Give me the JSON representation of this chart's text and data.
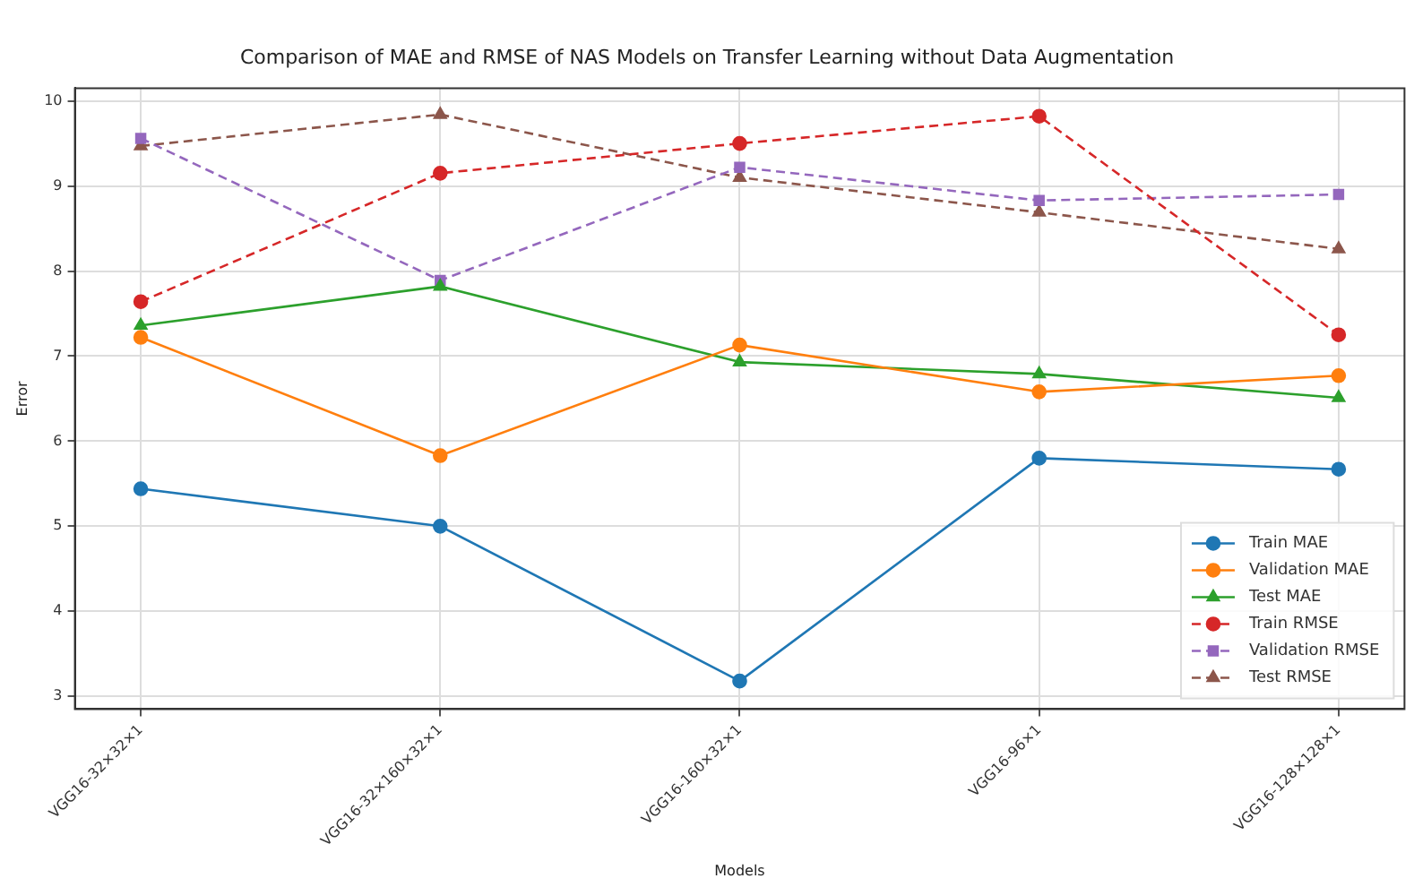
{
  "chart_data": {
    "type": "line",
    "title": "Comparison of MAE and RMSE of NAS Models on Transfer Learning without Data Augmentation",
    "xlabel": "Models",
    "ylabel": "Error",
    "categories": [
      "VGG16-32×32×1",
      "VGG16-32×160×32×1",
      "VGG16-160×32×1",
      "VGG16-96×1",
      "VGG16-128×128×1"
    ],
    "ylim": [
      2.85,
      10.15
    ],
    "yticks": [
      3,
      4,
      5,
      6,
      7,
      8,
      9,
      10
    ],
    "grid": true,
    "legend": "bottom right",
    "series": [
      {
        "name": "Train MAE",
        "color": "#1f77b4",
        "marker": "circle",
        "line_style": "solid",
        "values": [
          5.44,
          5.0,
          3.18,
          5.8,
          5.67
        ]
      },
      {
        "name": "Validation MAE",
        "color": "#ff7f0e",
        "marker": "circle",
        "line_style": "solid",
        "values": [
          7.22,
          5.83,
          7.13,
          6.58,
          6.77
        ]
      },
      {
        "name": "Test MAE",
        "color": "#2ca02c",
        "marker": "triangle",
        "line_style": "solid",
        "values": [
          7.36,
          7.82,
          6.93,
          6.79,
          6.51
        ]
      },
      {
        "name": "Train RMSE",
        "color": "#d62728",
        "marker": "circle",
        "line_style": "dashed",
        "values": [
          7.64,
          9.15,
          9.5,
          9.82,
          7.25
        ]
      },
      {
        "name": "Validation RMSE",
        "color": "#9467bd",
        "marker": "square",
        "line_style": "dashed",
        "values": [
          9.56,
          7.89,
          9.22,
          8.83,
          8.9
        ]
      },
      {
        "name": "Test RMSE",
        "color": "#8c564b",
        "marker": "triangle",
        "line_style": "dashed",
        "values": [
          9.47,
          9.84,
          9.1,
          8.69,
          8.26
        ]
      }
    ]
  }
}
